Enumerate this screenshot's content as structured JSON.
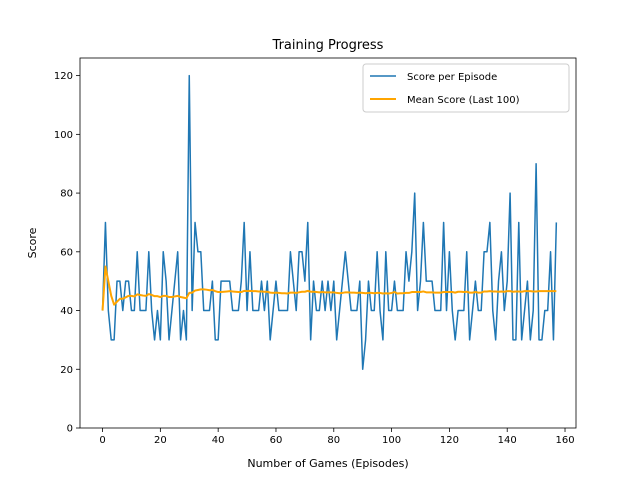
{
  "chart_data": {
    "type": "line",
    "title": "Training Progress",
    "xlabel": "Number of Games (Episodes)",
    "ylabel": "Score",
    "xlim": [
      -7.8,
      163.8
    ],
    "ylim": [
      0,
      126
    ],
    "xticks": [
      0,
      20,
      40,
      60,
      80,
      100,
      120,
      140,
      160
    ],
    "yticks": [
      0,
      20,
      40,
      60,
      80,
      100,
      120
    ],
    "grid": false,
    "legend_position": "top-right",
    "series": [
      {
        "name": "Score per Episode",
        "color": "#1f77b4",
        "values": [
          40,
          70,
          40,
          30,
          30,
          50,
          50,
          40,
          50,
          50,
          40,
          40,
          60,
          40,
          40,
          40,
          60,
          40,
          30,
          40,
          30,
          60,
          50,
          30,
          40,
          50,
          60,
          30,
          40,
          30,
          120,
          40,
          70,
          60,
          60,
          40,
          40,
          40,
          50,
          30,
          30,
          50,
          50,
          50,
          50,
          40,
          40,
          40,
          50,
          70,
          40,
          60,
          40,
          40,
          40,
          50,
          40,
          50,
          30,
          40,
          50,
          40,
          40,
          40,
          40,
          60,
          50,
          40,
          60,
          60,
          50,
          70,
          30,
          50,
          40,
          40,
          50,
          40,
          50,
          40,
          50,
          30,
          40,
          50,
          60,
          50,
          40,
          40,
          40,
          50,
          20,
          30,
          50,
          40,
          40,
          60,
          40,
          30,
          60,
          40,
          40,
          50,
          40,
          40,
          40,
          60,
          50,
          60,
          80,
          40,
          50,
          70,
          50,
          50,
          50,
          40,
          40,
          40,
          70,
          40,
          60,
          40,
          30,
          40,
          40,
          40,
          60,
          30,
          40,
          50,
          40,
          40,
          60,
          60,
          70,
          40,
          30,
          50,
          60,
          40,
          50,
          80,
          30,
          30,
          70,
          30,
          40,
          50,
          30,
          40,
          90,
          30,
          30,
          40,
          40,
          60,
          30,
          70
        ]
      },
      {
        "name": "Mean Score (Last 100)",
        "color": "#ffa500",
        "values": [
          40,
          55,
          50,
          45,
          42,
          43,
          44,
          44,
          44.5,
          45,
          45,
          44.8,
          45.5,
          45.3,
          45.1,
          45,
          45.6,
          45.3,
          44.9,
          44.9,
          44.6,
          45,
          45,
          44.6,
          44.6,
          44.8,
          45,
          44.6,
          44.4,
          44.2,
          46,
          46.1,
          46.8,
          47,
          47.2,
          47.2,
          47.1,
          46.9,
          47,
          46.6,
          46.3,
          46.3,
          46.4,
          46.5,
          46.6,
          46.5,
          46.4,
          46.3,
          46.3,
          46.7,
          46.6,
          46.7,
          46.6,
          46.6,
          46.5,
          46.5,
          46.4,
          46.4,
          46.1,
          46,
          46.1,
          46,
          45.9,
          45.9,
          45.8,
          46.1,
          46.1,
          46,
          46.2,
          46.4,
          46.4,
          46.7,
          46.4,
          46.4,
          46.3,
          46.2,
          46.3,
          46.2,
          46.2,
          46.2,
          46.2,
          46,
          45.9,
          46,
          46.2,
          46.2,
          46.1,
          46.1,
          46,
          46.1,
          46,
          45.9,
          46,
          46,
          45.9,
          46,
          46,
          45.8,
          45.9,
          45.8,
          46,
          46.3,
          45.8,
          45.9,
          45.9,
          46,
          46,
          46.3,
          46.3,
          46.3,
          46.3,
          46.5,
          46.2,
          46.2,
          46.2,
          46.1,
          46.1,
          46.1,
          46.3,
          46.3,
          46.3,
          46.3,
          46.1,
          46.4,
          46.4,
          46.3,
          46.4,
          46.1,
          46.1,
          46.3,
          46.1,
          46.1,
          46.5,
          46.5,
          46.6,
          46.5,
          46.5,
          46.4,
          46.5,
          46.4,
          46.6,
          46.6,
          46.4,
          46.5,
          46.5,
          46.4,
          46.6,
          46.6,
          46.6,
          46.5,
          46.5,
          46.6,
          46.6,
          46.6,
          46.6,
          46.6,
          46.6,
          46.6
        ]
      }
    ]
  }
}
